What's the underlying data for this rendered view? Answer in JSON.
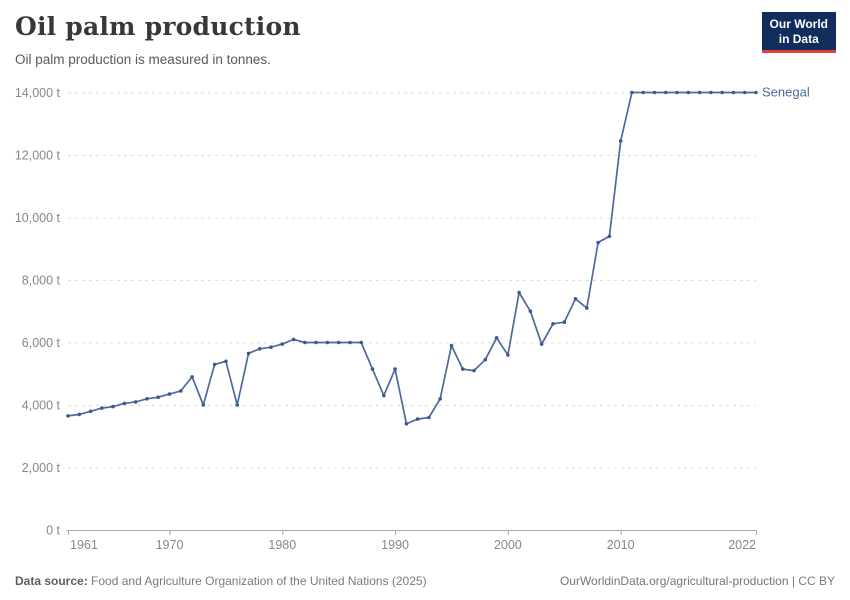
{
  "header": {
    "title": "Oil palm production",
    "subtitle": "Oil palm production is measured in tonnes.",
    "logo": {
      "line1": "Our World",
      "line2": "in Data",
      "bg_color": "#102d5c",
      "accent_color": "#e23d3d"
    }
  },
  "footer": {
    "source_label": "Data source:",
    "source_text": "Food and Agriculture Organization of the United Nations (2025)",
    "url": "OurWorldinData.org/agricultural-production",
    "separator": "|",
    "license": "CC BY"
  },
  "colors": {
    "line": "#4C6A9C",
    "marker": "#3D5A8C",
    "grid": "#dcdcdc",
    "axis": "#a9a9a9",
    "axis_text": "#878787",
    "series_label": "#4C6A9C"
  },
  "chart_data": {
    "type": "line",
    "title": "Oil palm production",
    "subtitle": "Oil palm production is measured in tonnes.",
    "unit": "t",
    "grid": "horizontal dashed",
    "legend": "end-of-line label",
    "xlim": [
      1961,
      2022
    ],
    "ylim": [
      0,
      14000
    ],
    "x_ticks": [
      1961,
      1970,
      1980,
      1990,
      2000,
      2010,
      2022
    ],
    "y_ticks": [
      0,
      2000,
      4000,
      6000,
      8000,
      10000,
      12000,
      14000
    ],
    "y_tick_suffix": " t",
    "series": [
      {
        "name": "Senegal",
        "color": "#4C6A9C",
        "years": [
          1961,
          1962,
          1963,
          1964,
          1965,
          1966,
          1967,
          1968,
          1969,
          1970,
          1971,
          1972,
          1973,
          1974,
          1975,
          1976,
          1977,
          1978,
          1979,
          1980,
          1981,
          1982,
          1983,
          1984,
          1985,
          1986,
          1987,
          1988,
          1989,
          1990,
          1991,
          1992,
          1993,
          1994,
          1995,
          1996,
          1997,
          1998,
          1999,
          2000,
          2001,
          2002,
          2003,
          2004,
          2005,
          2006,
          2007,
          2008,
          2009,
          2010,
          2011,
          2012,
          2013,
          2014,
          2015,
          2016,
          2017,
          2018,
          2019,
          2020,
          2021,
          2022
        ],
        "values": [
          3650,
          3700,
          3800,
          3900,
          3950,
          4050,
          4100,
          4200,
          4250,
          4350,
          4450,
          4900,
          4000,
          5300,
          5400,
          4000,
          5650,
          5800,
          5850,
          5950,
          6100,
          6000,
          6000,
          6000,
          6000,
          6000,
          6000,
          5150,
          4300,
          5150,
          3400,
          3550,
          3600,
          4200,
          5900,
          5150,
          5100,
          5450,
          6150,
          5600,
          7600,
          7000,
          5950,
          6600,
          6650,
          7400,
          7100,
          9200,
          9400,
          12450,
          14000,
          14000,
          14000,
          14000,
          14000,
          14000,
          14000,
          14000,
          14000,
          14000,
          14000,
          14000
        ]
      }
    ]
  }
}
